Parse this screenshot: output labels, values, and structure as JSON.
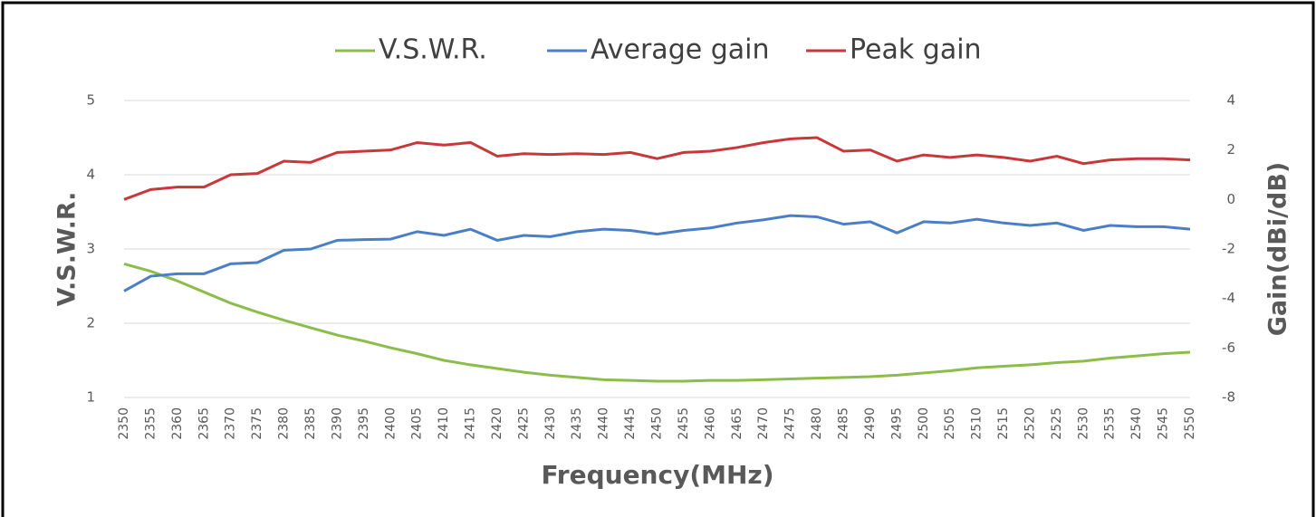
{
  "chart_data": {
    "type": "line",
    "xlabel": "Frequency(MHz)",
    "ylabel": "V.S.W.R.",
    "y2label": "Gain(dBi/dB)",
    "x": [
      2350,
      2355,
      2360,
      2365,
      2370,
      2375,
      2380,
      2385,
      2390,
      2395,
      2400,
      2405,
      2410,
      2415,
      2420,
      2425,
      2430,
      2435,
      2440,
      2445,
      2450,
      2455,
      2460,
      2465,
      2470,
      2475,
      2480,
      2485,
      2490,
      2495,
      2500,
      2505,
      2510,
      2515,
      2520,
      2525,
      2530,
      2535,
      2540,
      2545,
      2550
    ],
    "xlim": [
      2350,
      2550
    ],
    "xticks": [
      2350,
      2355,
      2360,
      2365,
      2370,
      2375,
      2380,
      2385,
      2390,
      2395,
      2400,
      2405,
      2410,
      2415,
      2420,
      2425,
      2430,
      2435,
      2440,
      2445,
      2450,
      2455,
      2460,
      2465,
      2470,
      2475,
      2480,
      2485,
      2490,
      2495,
      2500,
      2505,
      2510,
      2515,
      2520,
      2525,
      2530,
      2535,
      2540,
      2545,
      2550
    ],
    "ylim": [
      1,
      5
    ],
    "yticks": [
      1,
      2,
      3,
      4,
      5
    ],
    "y2lim": [
      -8,
      4
    ],
    "y2ticks": [
      -8,
      -6,
      -4,
      -2,
      0,
      2,
      4
    ],
    "grid": true,
    "legend": "top",
    "series": [
      {
        "name": "V.S.W.R.",
        "color": "#8cbd4a",
        "values": [
          2.8,
          2.7,
          2.57,
          2.42,
          2.27,
          2.15,
          2.04,
          1.94,
          1.84,
          1.76,
          1.67,
          1.59,
          1.5,
          1.44,
          1.39,
          1.34,
          1.3,
          1.27,
          1.24,
          1.23,
          1.22,
          1.22,
          1.23,
          1.23,
          1.24,
          1.25,
          1.26,
          1.27,
          1.28,
          1.3,
          1.33,
          1.36,
          1.4,
          1.42,
          1.44,
          1.47,
          1.49,
          1.53,
          1.56,
          1.59,
          1.61
        ]
      },
      {
        "name": "Average gain",
        "color": "#4a7fc8",
        "axis": "y2",
        "values": [
          -3.7,
          -3.1,
          -3.0,
          -3.0,
          -2.6,
          -2.55,
          -2.05,
          -2.0,
          -1.65,
          -1.62,
          -1.6,
          -1.3,
          -1.45,
          -1.2,
          -1.65,
          -1.45,
          -1.5,
          -1.3,
          -1.2,
          -1.25,
          -1.4,
          -1.25,
          -1.15,
          -0.95,
          -0.82,
          -0.65,
          -0.7,
          -1.0,
          -0.9,
          -1.35,
          -0.9,
          -0.95,
          -0.8,
          -0.95,
          -1.05,
          -0.95,
          -1.25,
          -1.05,
          -1.1,
          -1.1,
          -1.2
        ]
      },
      {
        "name": "Peak gain",
        "color": "#c8373a",
        "axis": "y2",
        "values": [
          0,
          0.4,
          0.5,
          0.5,
          1.0,
          1.05,
          1.55,
          1.5,
          1.9,
          1.95,
          2.0,
          2.3,
          2.2,
          2.3,
          1.75,
          1.85,
          1.82,
          1.85,
          1.82,
          1.9,
          1.65,
          1.9,
          1.95,
          2.1,
          2.3,
          2.45,
          2.5,
          1.95,
          2.0,
          1.55,
          1.8,
          1.7,
          1.8,
          1.7,
          1.55,
          1.75,
          1.45,
          1.6,
          1.65,
          1.65,
          1.6
        ]
      }
    ]
  }
}
